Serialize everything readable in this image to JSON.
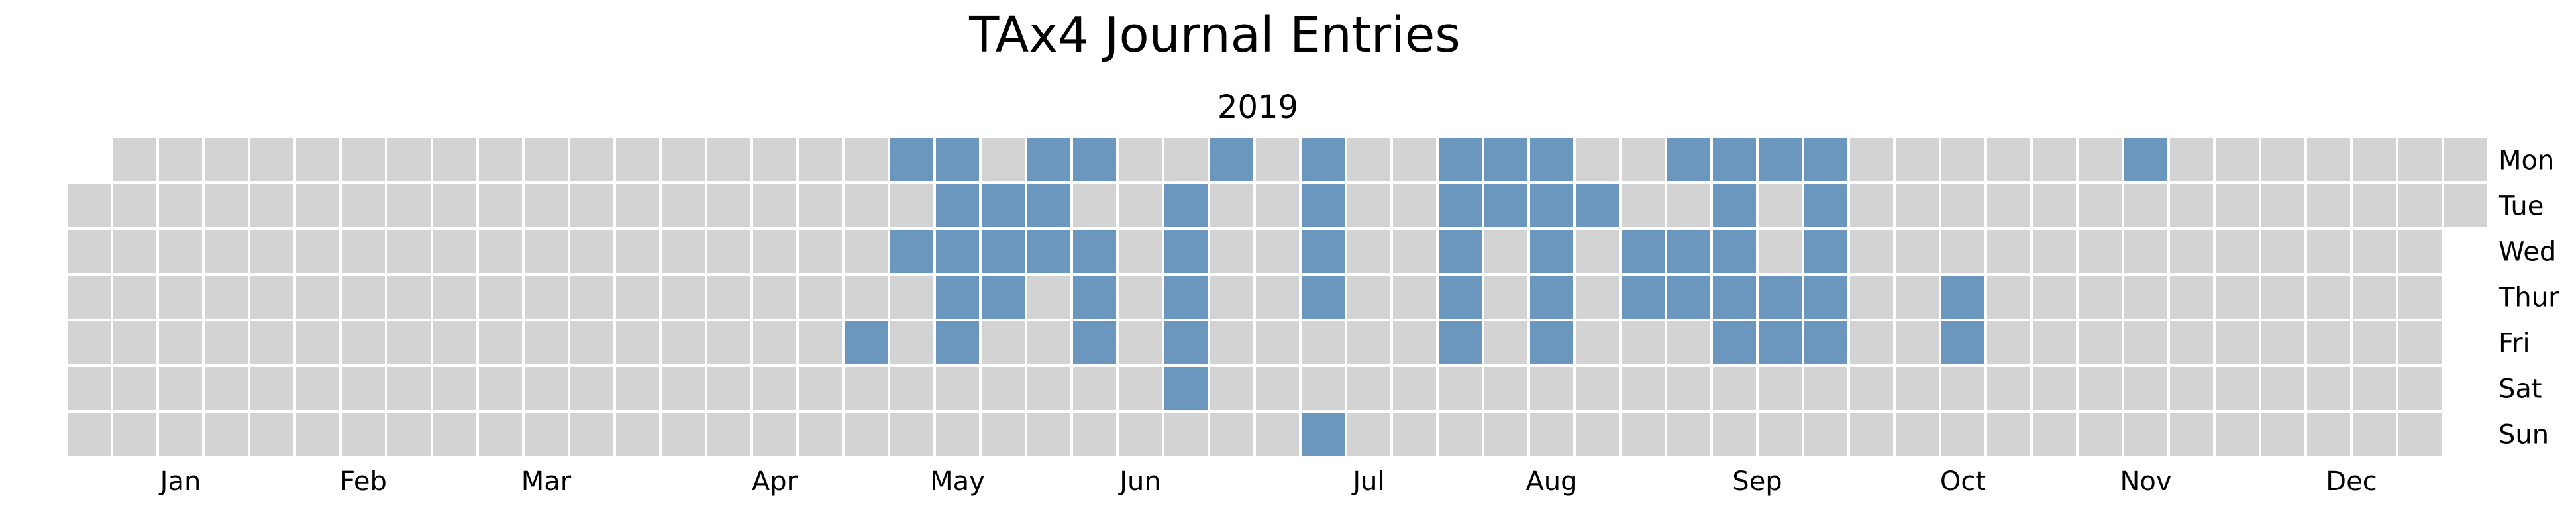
{
  "chart_data": {
    "type": "heatmap",
    "title": "TAx4 Journal Entries",
    "subtitle": "2019",
    "year": 2019,
    "x_tick_labels": [
      "Jan",
      "Feb",
      "Mar",
      "Apr",
      "May",
      "Jun",
      "Jul",
      "Aug",
      "Sep",
      "Oct",
      "Nov",
      "Dec"
    ],
    "y_tick_labels": [
      "Mon",
      "Tue",
      "Wed",
      "Thur",
      "Fri",
      "Sat",
      "Sun"
    ],
    "legend": "none",
    "grid": false,
    "colors": {
      "empty": "#d3d3d3",
      "entry": "#6b97bf",
      "cell_border": "#ffffff"
    },
    "entry_dates": [
      "2019-05-03",
      "2019-05-06",
      "2019-05-08",
      "2019-05-13",
      "2019-05-14",
      "2019-05-15",
      "2019-05-16",
      "2019-05-17",
      "2019-05-21",
      "2019-05-22",
      "2019-05-23",
      "2019-05-27",
      "2019-05-28",
      "2019-05-29",
      "2019-06-03",
      "2019-06-05",
      "2019-06-06",
      "2019-06-07",
      "2019-06-18",
      "2019-06-19",
      "2019-06-20",
      "2019-06-21",
      "2019-06-22",
      "2019-06-24",
      "2019-07-08",
      "2019-07-09",
      "2019-07-10",
      "2019-07-11",
      "2019-07-14",
      "2019-07-29",
      "2019-07-30",
      "2019-07-31",
      "2019-08-01",
      "2019-08-02",
      "2019-08-05",
      "2019-08-06",
      "2019-08-12",
      "2019-08-13",
      "2019-08-14",
      "2019-08-15",
      "2019-08-16",
      "2019-08-20",
      "2019-08-28",
      "2019-08-29",
      "2019-09-02",
      "2019-09-04",
      "2019-09-05",
      "2019-09-09",
      "2019-09-10",
      "2019-09-11",
      "2019-09-12",
      "2019-09-13",
      "2019-09-16",
      "2019-09-19",
      "2019-09-20",
      "2019-09-23",
      "2019-09-24",
      "2019-09-25",
      "2019-09-26",
      "2019-09-27",
      "2019-10-17",
      "2019-10-18",
      "2019-11-11"
    ]
  }
}
